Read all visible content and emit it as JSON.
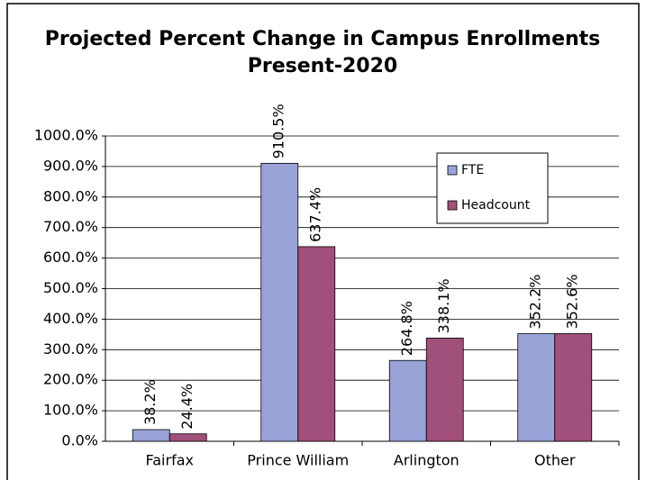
{
  "chart_data": {
    "type": "bar",
    "title": [
      "Projected Percent Change in Campus Enrollments",
      "Present-2020"
    ],
    "categories": [
      "Fairfax",
      "Prince William",
      "Arlington",
      "Other"
    ],
    "series": [
      {
        "name": "FTE",
        "color": "#99a3d8",
        "values": [
          38.2,
          910.5,
          264.8,
          352.2
        ],
        "value_labels": [
          "38.2%",
          "910.5%",
          "264.8%",
          "352.2%"
        ]
      },
      {
        "name": "Headcount",
        "color": "#a0507a",
        "values": [
          24.4,
          637.4,
          338.1,
          352.6
        ],
        "value_labels": [
          "24.4%",
          "637.4%",
          "338.1%",
          "352.6%"
        ]
      }
    ],
    "ylim": [
      0,
      1000
    ],
    "yticks": [
      {
        "value": 0,
        "label": "0.0%"
      },
      {
        "value": 100,
        "label": "100.0%"
      },
      {
        "value": 200,
        "label": "200.0%"
      },
      {
        "value": 300,
        "label": "300.0%"
      },
      {
        "value": 400,
        "label": "400.0%"
      },
      {
        "value": 500,
        "label": "500.0%"
      },
      {
        "value": 600,
        "label": "600.0%"
      },
      {
        "value": 700,
        "label": "700.0%"
      },
      {
        "value": 800,
        "label": "800.0%"
      },
      {
        "value": 900,
        "label": "900.0%"
      },
      {
        "value": 1000,
        "label": "1000.0%"
      }
    ],
    "grid": true,
    "legend": "upper right"
  }
}
